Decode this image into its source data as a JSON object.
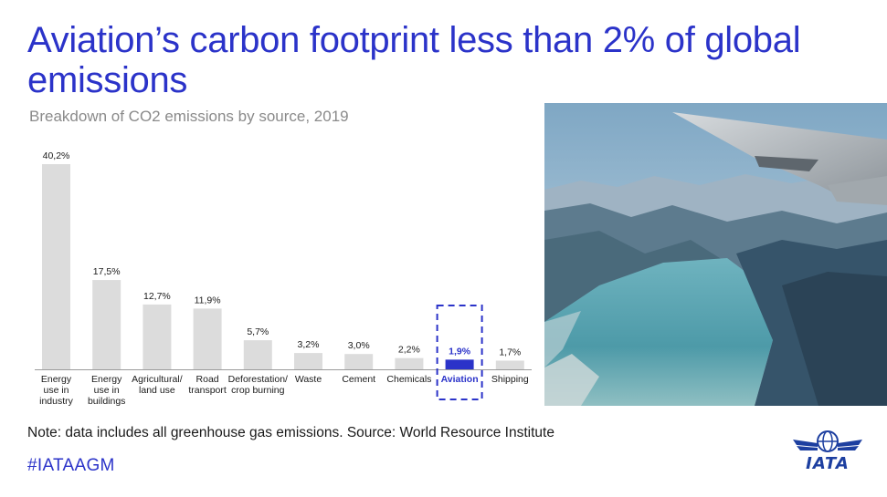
{
  "header": {
    "title": "Aviation’s carbon footprint less than 2% of global emissions",
    "subtitle": "Breakdown of CO2 emissions by source, 2019"
  },
  "chart_data": {
    "type": "bar",
    "categories": [
      [
        "Energy",
        "use in",
        "industry"
      ],
      [
        "Energy",
        "use in",
        "buildings"
      ],
      [
        "Agricultural/",
        "land use"
      ],
      [
        "Road",
        "transport"
      ],
      [
        "Deforestation/",
        "crop burning"
      ],
      [
        "Waste"
      ],
      [
        "Cement"
      ],
      [
        "Chemicals"
      ],
      [
        "Aviation"
      ],
      [
        "Shipping"
      ]
    ],
    "values": [
      40.2,
      17.5,
      12.7,
      11.9,
      5.7,
      3.2,
      3.0,
      2.2,
      1.9,
      1.7
    ],
    "value_labels": [
      "40,2%",
      "17,5%",
      "12,7%",
      "11,9%",
      "5,7%",
      "3,2%",
      "3,0%",
      "2,2%",
      "1,9%",
      "1,7%"
    ],
    "highlight_index": 8,
    "ylim": [
      0,
      40.2
    ],
    "grid": false,
    "colors": {
      "bar": "#dcdcdc",
      "highlight": "#2b33c9",
      "label": "#1a1a1a",
      "axis": "#9a9a9a"
    }
  },
  "footer": {
    "note": "Note: data includes all greenhouse gas emissions. Source: World Resource Institute",
    "hashtag": "#IATAAGM"
  },
  "logo": {
    "text": "IATA",
    "color": "#1d3fa0"
  },
  "colors": {
    "brand": "#2b33c9"
  }
}
